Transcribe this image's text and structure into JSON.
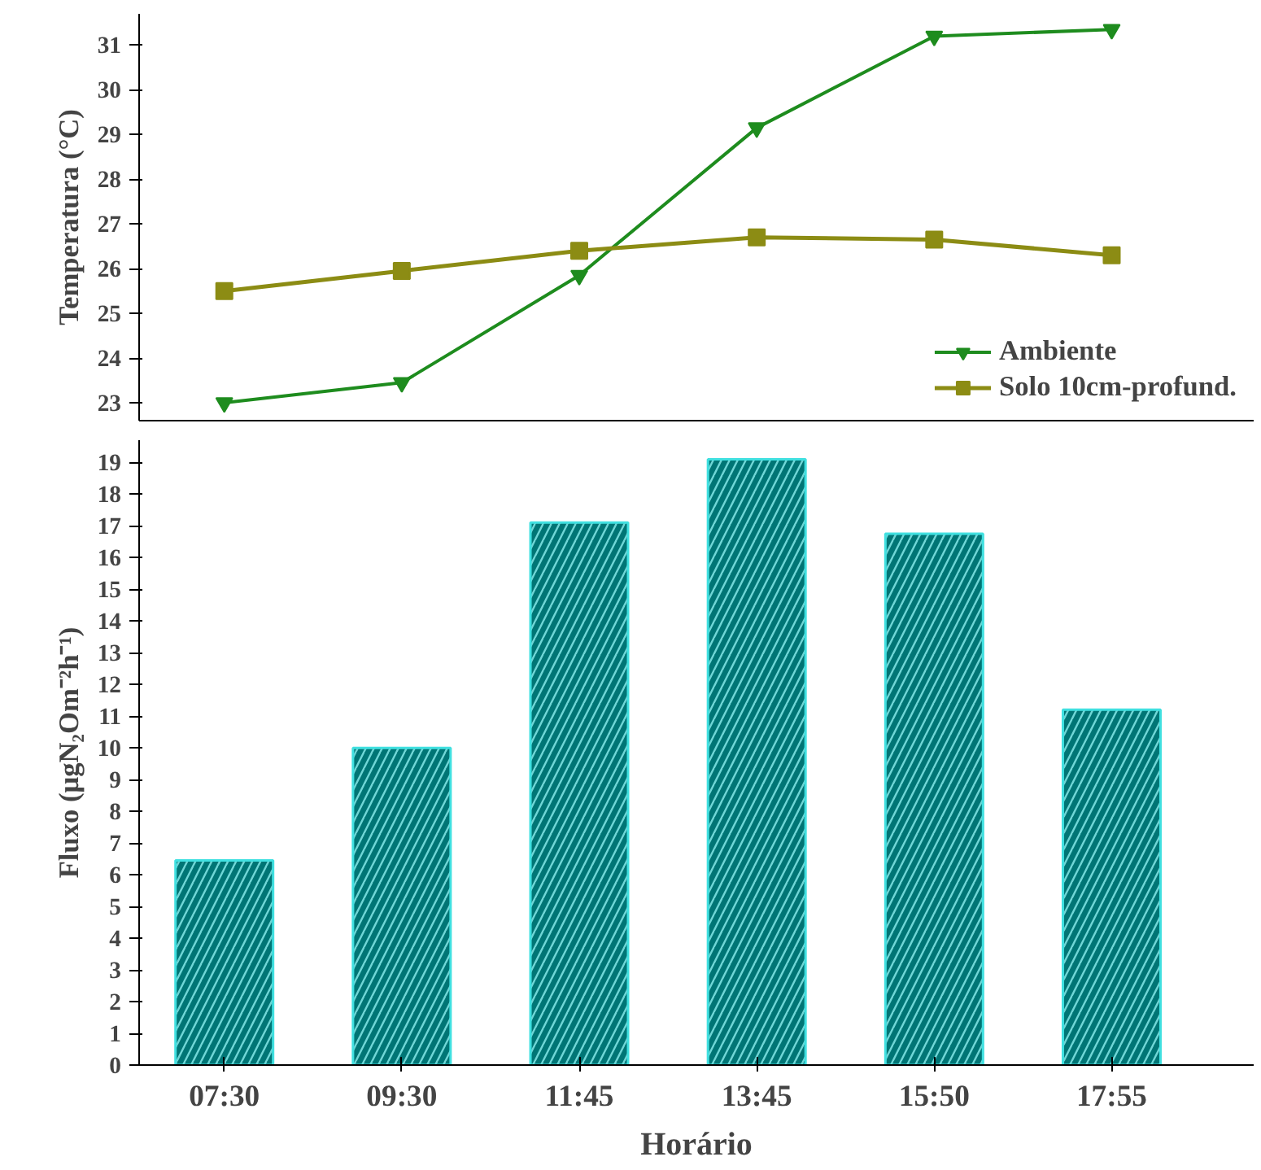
{
  "chart_data": [
    {
      "type": "line",
      "ylabel": "Temperatura (°C)",
      "categories": [
        null,
        null,
        null,
        null,
        null,
        null
      ],
      "ylim": [
        22.6,
        31.7
      ],
      "yticks": [
        23,
        24,
        25,
        26,
        27,
        28,
        29,
        30,
        31
      ],
      "grid": false,
      "legend": "bottom right",
      "series": [
        {
          "name": "Ambiente",
          "color": "#1e8c1e",
          "marker": "triangle",
          "values": [
            23.0,
            23.45,
            25.85,
            29.15,
            31.2,
            31.35
          ]
        },
        {
          "name": "Solo 10cm-profund.",
          "color": "#8c8c14",
          "marker": "square",
          "values": [
            25.5,
            25.95,
            26.4,
            26.7,
            26.65,
            26.3
          ]
        }
      ]
    },
    {
      "type": "bar",
      "xlabel": "Horário",
      "ylabel": "Fluxo (μgN₂Om⁻²h⁻¹)",
      "categories": [
        "07:30",
        "09:30",
        "11:45",
        "13:45",
        "15:50",
        "17:55"
      ],
      "ylim": [
        0,
        19.7
      ],
      "yticks": [
        0,
        1,
        2,
        3,
        4,
        5,
        6,
        7,
        8,
        9,
        10,
        11,
        12,
        13,
        14,
        15,
        16,
        17,
        18,
        19
      ],
      "grid": false,
      "color": "#007575",
      "values": [
        6.45,
        10.0,
        17.1,
        19.1,
        16.75,
        11.2
      ]
    }
  ]
}
